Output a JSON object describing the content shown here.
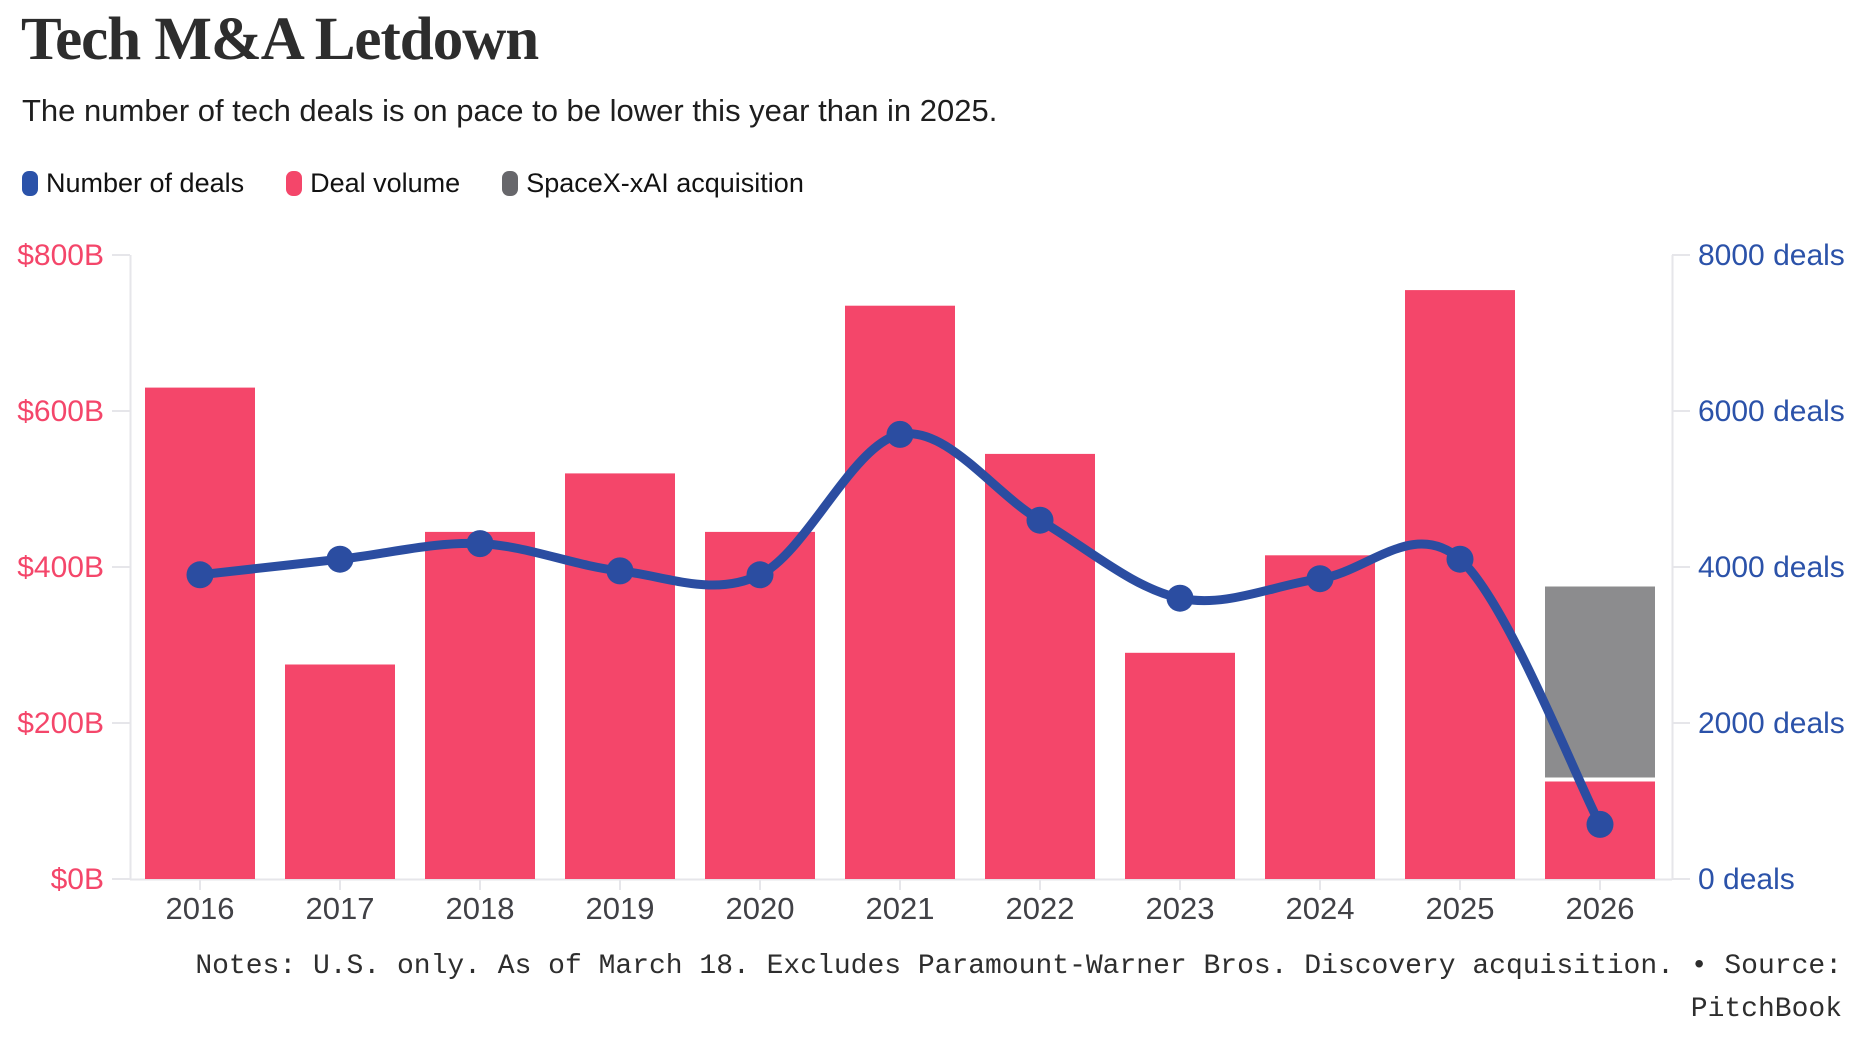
{
  "header": {
    "title": "Tech M&A Letdown",
    "subtitle": "The number of tech deals is on pace to be lower this year than in 2025."
  },
  "legend": {
    "items": [
      {
        "label": "Number of deals",
        "color": "#2b52a9"
      },
      {
        "label": "Deal volume",
        "color": "#f4466a"
      },
      {
        "label": "SpaceX-xAI acquisition",
        "color": "#67676b"
      }
    ]
  },
  "axes": {
    "left_tick_labels": [
      "$800B",
      "$600B",
      "$400B",
      "$200B",
      "$0B"
    ],
    "right_tick_labels": [
      "8000 deals",
      "6000 deals",
      "4000 deals",
      "2000 deals",
      "0 deals"
    ],
    "left_color": "#f4466a",
    "right_color": "#2b52a9",
    "year_label_color": "#414146",
    "grid_color": "#e6e6ea"
  },
  "chart_data": {
    "type": "bar",
    "categories": [
      "2016",
      "2017",
      "2018",
      "2019",
      "2020",
      "2021",
      "2022",
      "2023",
      "2024",
      "2025",
      "2026"
    ],
    "series": [
      {
        "name": "Deal volume",
        "type": "bar",
        "unit": "$B",
        "color": "#f4466a",
        "values": [
          630,
          275,
          445,
          520,
          445,
          735,
          545,
          290,
          415,
          755,
          125
        ]
      },
      {
        "name": "SpaceX-xAI acquisition",
        "type": "bar-stacked-top",
        "unit": "$B",
        "color": "#8c8c8e",
        "values": [
          null,
          null,
          null,
          null,
          null,
          null,
          null,
          null,
          null,
          null,
          250
        ]
      },
      {
        "name": "Number of deals",
        "type": "line",
        "unit": "deals",
        "color": "#2b4da1",
        "values": [
          3900,
          4100,
          4300,
          3950,
          3900,
          5700,
          4600,
          3600,
          3850,
          4100,
          700
        ]
      }
    ],
    "title": "Tech M&A Letdown",
    "subtitle": "The number of tech deals is on pace to be lower this year than in 2025.",
    "xlabel": "",
    "ylabel_left": "Deal volume ($B)",
    "ylabel_right": "Number of deals",
    "ylim_left": [
      0,
      800
    ],
    "ylim_right": [
      0,
      8000
    ],
    "grid": "ticks-only",
    "legend_position": "top-left"
  },
  "footer": {
    "line1": "Notes: U.S. only. As of March 18. Excludes Paramount-Warner Bros. Discovery acquisition. • Source:",
    "line2": "PitchBook"
  }
}
